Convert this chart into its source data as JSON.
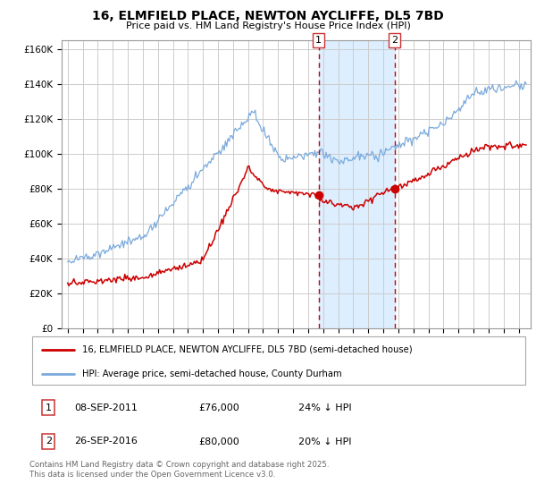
{
  "title": "16, ELMFIELD PLACE, NEWTON AYCLIFFE, DL5 7BD",
  "subtitle": "Price paid vs. HM Land Registry's House Price Index (HPI)",
  "legend_line1": "16, ELMFIELD PLACE, NEWTON AYCLIFFE, DL5 7BD (semi-detached house)",
  "legend_line2": "HPI: Average price, semi-detached house, County Durham",
  "footnote": "Contains HM Land Registry data © Crown copyright and database right 2025.\nThis data is licensed under the Open Government Licence v3.0.",
  "annotation1_date": "08-SEP-2011",
  "annotation1_price": "£76,000",
  "annotation1_hpi": "24% ↓ HPI",
  "annotation2_date": "26-SEP-2016",
  "annotation2_price": "£80,000",
  "annotation2_hpi": "20% ↓ HPI",
  "red_color": "#cc0000",
  "blue_color": "#7aaadd",
  "background_color": "#ffffff",
  "grid_color": "#cccccc",
  "shade_color": "#ddeeff",
  "ylim": [
    0,
    165000
  ],
  "yticks": [
    0,
    20000,
    40000,
    60000,
    80000,
    100000,
    120000,
    140000,
    160000
  ],
  "xlim_left": 1994.6,
  "xlim_right": 2025.8,
  "vline1_x": 2011.69,
  "vline2_x": 2016.74,
  "marker1_x": 2011.69,
  "marker1_y": 76000,
  "marker2_x": 2016.74,
  "marker2_y": 80000
}
